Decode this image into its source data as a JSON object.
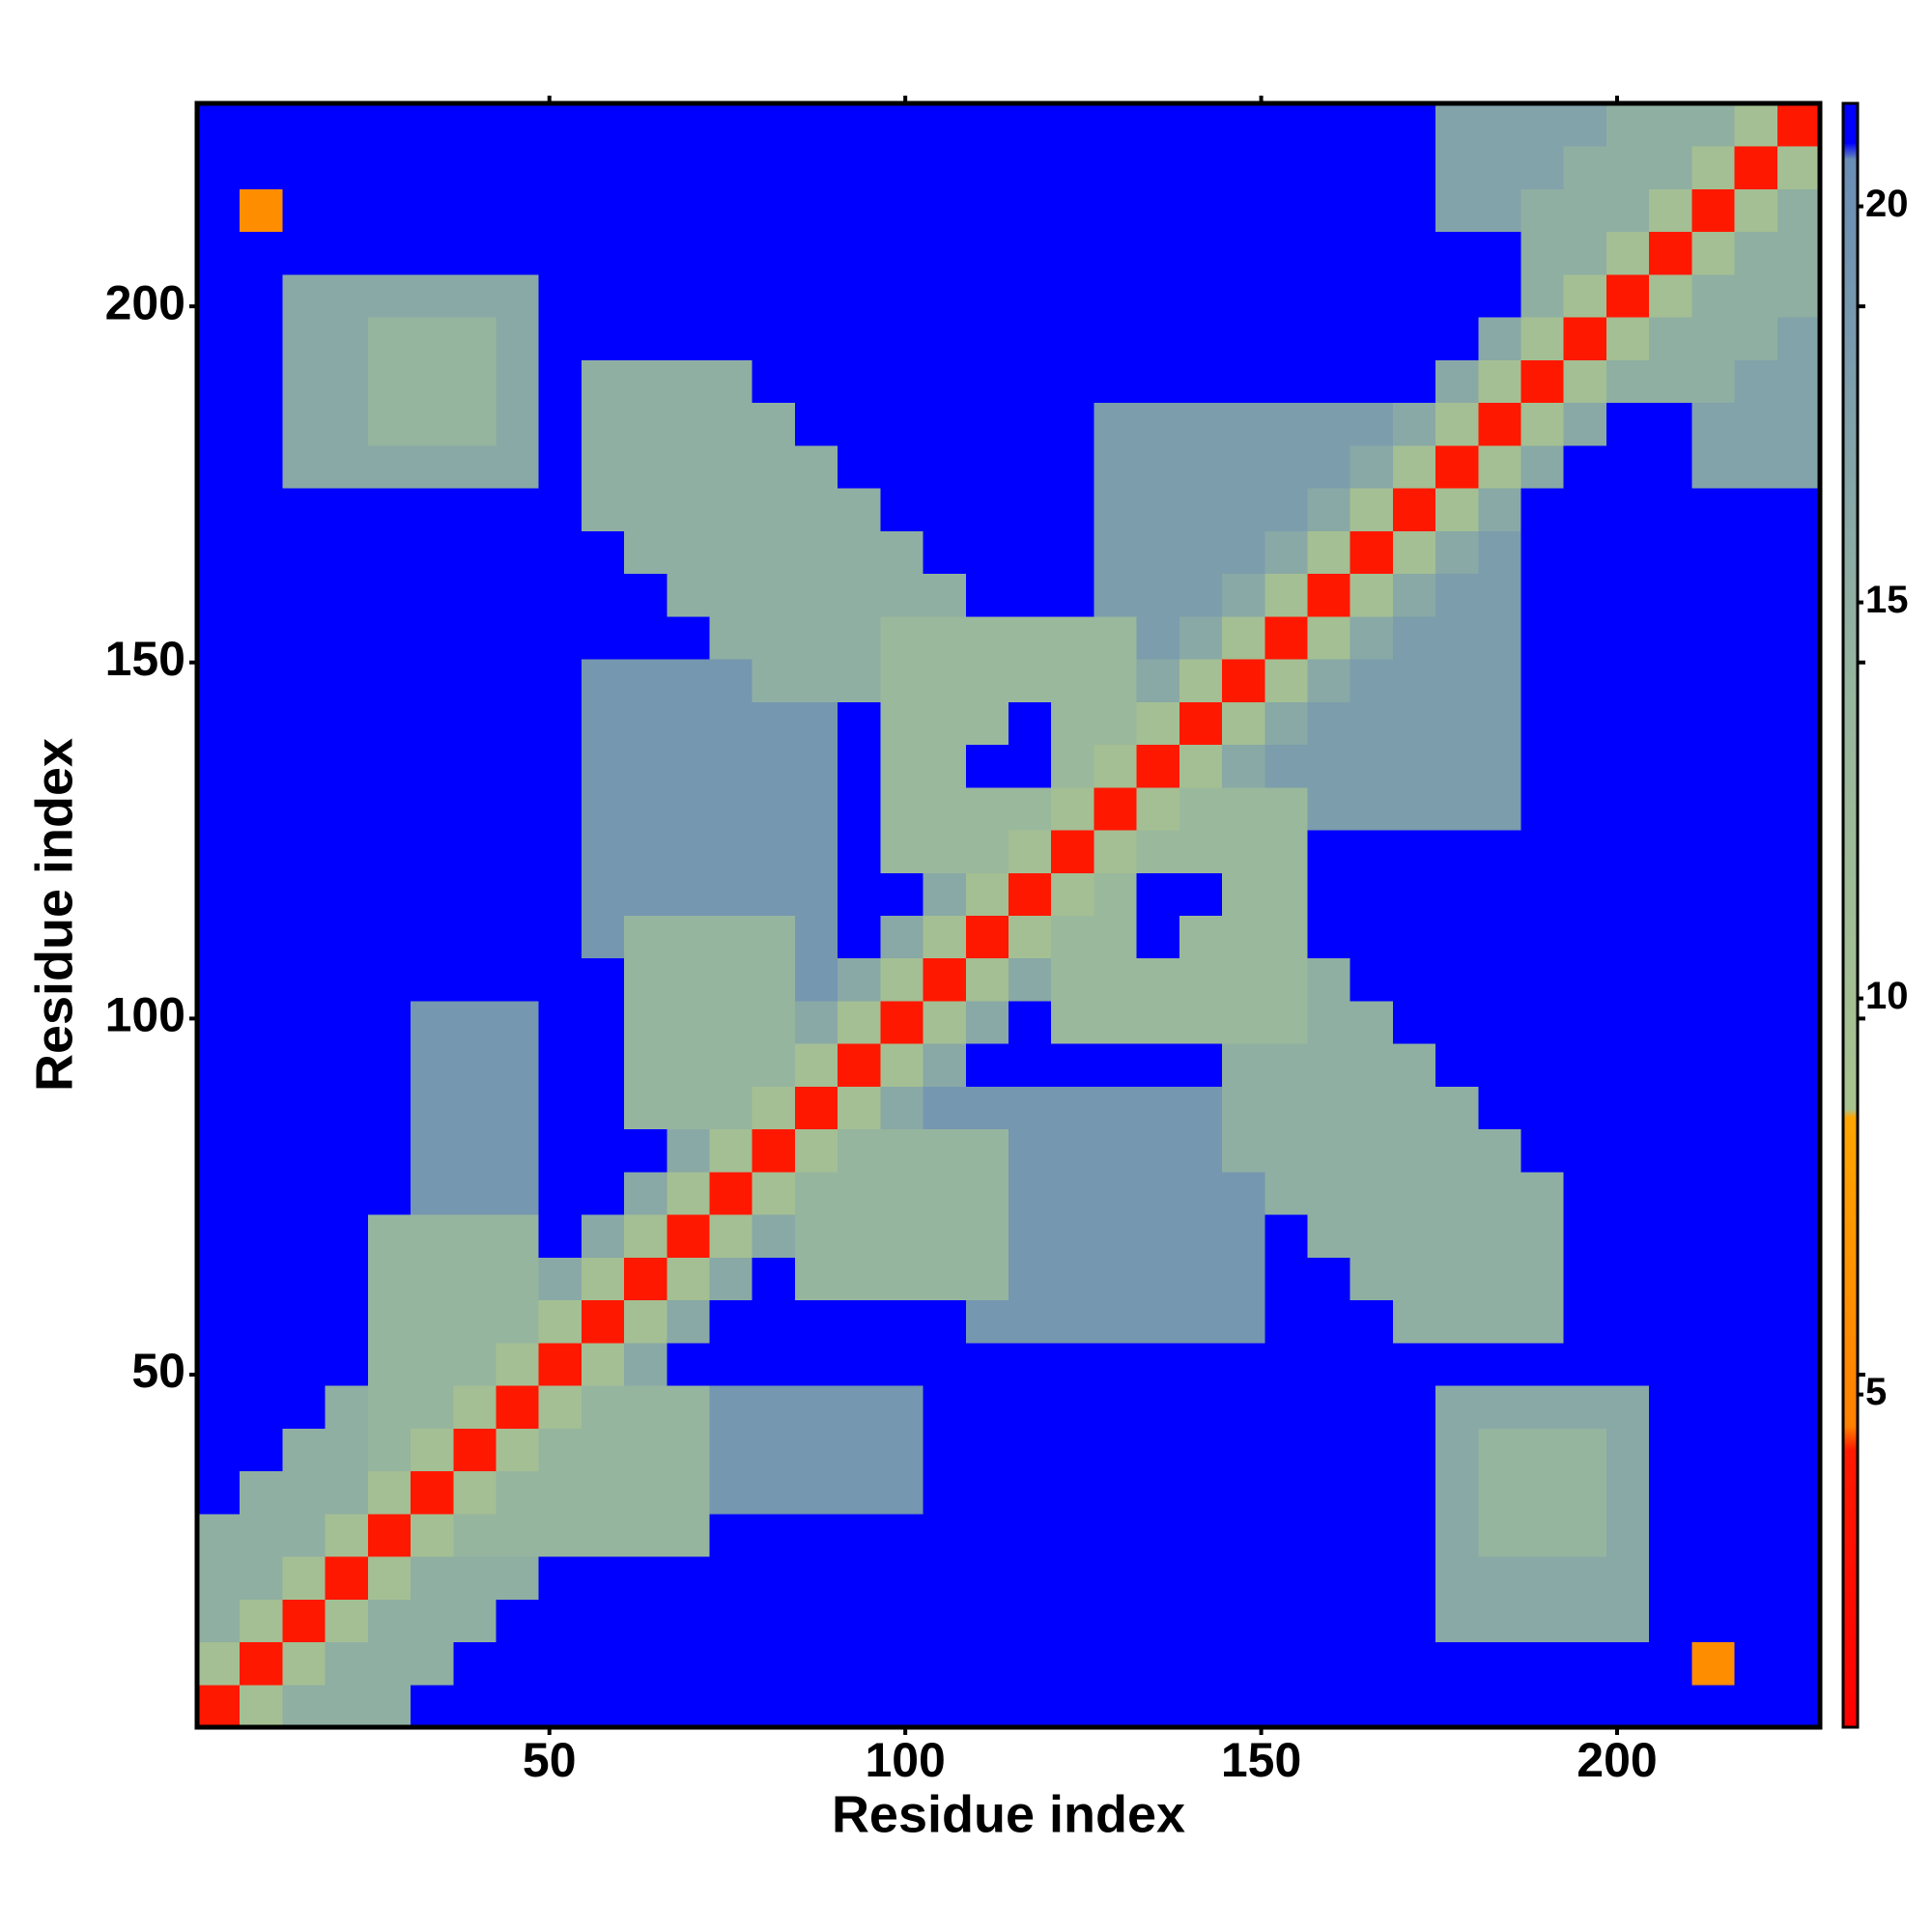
{
  "chart_data": {
    "type": "heatmap",
    "xlabel": "Residue index",
    "ylabel": "Residue index",
    "xlim": [
      0.5,
      228.5
    ],
    "ylim": [
      0.5,
      228.5
    ],
    "xticks": [
      50,
      100,
      150,
      200
    ],
    "yticks": [
      50,
      100,
      150,
      200
    ],
    "zlim": [
      0.8,
      21.3
    ],
    "zticks": [
      5,
      10,
      15,
      20
    ],
    "colorscale": [
      [
        0.8,
        "#ff0000"
      ],
      [
        4.3,
        "#ff1a00"
      ],
      [
        4.6,
        "#ff8000"
      ],
      [
        8.5,
        "#ffa500"
      ],
      [
        8.6,
        "#a9c38f"
      ],
      [
        14,
        "#96b59f"
      ],
      [
        20.6,
        "#6a8db5"
      ],
      [
        20.8,
        "#0000ff"
      ],
      [
        21.3,
        "#0000ff"
      ]
    ],
    "z": [
      [
        4,
        10,
        15,
        15,
        15,
        22,
        22,
        22,
        22,
        22,
        22,
        22,
        22,
        22,
        22,
        22,
        22,
        22,
        22,
        22,
        22,
        22,
        22,
        22,
        22,
        22,
        22,
        22,
        22,
        22,
        22,
        22,
        22,
        22,
        22,
        22,
        22,
        22
      ],
      [
        10,
        4,
        10,
        15,
        15,
        15,
        22,
        22,
        22,
        22,
        22,
        22,
        22,
        22,
        22,
        22,
        22,
        22,
        22,
        22,
        22,
        22,
        22,
        22,
        22,
        22,
        22,
        22,
        22,
        22,
        22,
        22,
        22,
        22,
        22,
        6,
        22,
        22
      ],
      [
        15,
        10,
        4,
        10,
        15,
        15,
        15,
        22,
        22,
        22,
        22,
        22,
        22,
        22,
        22,
        22,
        22,
        22,
        22,
        22,
        22,
        22,
        22,
        22,
        22,
        22,
        22,
        22,
        22,
        16,
        16,
        16,
        16,
        16,
        22,
        22,
        22,
        22
      ],
      [
        15,
        15,
        10,
        4,
        10,
        15,
        15,
        15,
        22,
        22,
        22,
        22,
        22,
        22,
        22,
        22,
        22,
        22,
        22,
        22,
        22,
        22,
        22,
        22,
        22,
        22,
        22,
        22,
        22,
        16,
        16,
        16,
        16,
        16,
        22,
        22,
        22,
        22
      ],
      [
        15,
        15,
        15,
        10,
        4,
        10,
        14,
        14,
        14,
        14,
        14,
        14,
        22,
        22,
        22,
        22,
        22,
        22,
        22,
        22,
        22,
        22,
        22,
        22,
        22,
        22,
        22,
        22,
        22,
        16,
        14,
        14,
        14,
        16,
        22,
        22,
        22,
        22
      ],
      [
        22,
        15,
        15,
        15,
        10,
        4,
        10,
        14,
        14,
        14,
        14,
        14,
        19,
        19,
        19,
        19,
        19,
        22,
        22,
        22,
        22,
        22,
        22,
        22,
        22,
        22,
        22,
        22,
        22,
        16,
        14,
        14,
        14,
        16,
        22,
        22,
        22,
        22
      ],
      [
        22,
        22,
        15,
        15,
        14,
        10,
        4,
        10,
        14,
        14,
        14,
        14,
        19,
        19,
        19,
        19,
        19,
        22,
        22,
        22,
        22,
        22,
        22,
        22,
        22,
        22,
        22,
        22,
        22,
        16,
        14,
        14,
        14,
        16,
        22,
        22,
        22,
        22
      ],
      [
        22,
        22,
        22,
        15,
        14,
        14,
        10,
        4,
        10,
        14,
        14,
        14,
        19,
        19,
        19,
        19,
        19,
        22,
        22,
        22,
        22,
        22,
        22,
        22,
        22,
        22,
        22,
        22,
        22,
        16,
        16,
        16,
        16,
        16,
        22,
        22,
        22,
        22
      ],
      [
        22,
        22,
        22,
        22,
        14,
        14,
        14,
        10,
        4,
        10,
        16,
        22,
        22,
        22,
        22,
        22,
        22,
        22,
        22,
        22,
        22,
        22,
        22,
        22,
        22,
        22,
        22,
        22,
        22,
        22,
        22,
        22,
        22,
        22,
        22,
        22,
        22,
        22
      ],
      [
        22,
        22,
        22,
        22,
        14,
        14,
        14,
        14,
        10,
        4,
        10,
        16,
        22,
        22,
        22,
        22,
        22,
        22,
        19,
        19,
        19,
        19,
        19,
        19,
        19,
        22,
        22,
        22,
        15,
        15,
        15,
        15,
        22,
        22,
        22,
        22,
        22,
        22
      ],
      [
        22,
        22,
        22,
        22,
        14,
        14,
        14,
        14,
        16,
        10,
        4,
        10,
        16,
        22,
        14,
        14,
        14,
        14,
        14,
        19,
        19,
        19,
        19,
        19,
        19,
        22,
        22,
        15,
        15,
        15,
        15,
        15,
        22,
        22,
        22,
        22,
        22,
        22
      ],
      [
        22,
        22,
        22,
        22,
        14,
        14,
        14,
        14,
        22,
        16,
        10,
        4,
        10,
        16,
        14,
        14,
        14,
        14,
        14,
        19,
        19,
        19,
        19,
        19,
        19,
        22,
        15,
        15,
        15,
        15,
        15,
        15,
        22,
        22,
        22,
        22,
        22,
        22
      ],
      [
        22,
        22,
        22,
        22,
        22,
        19,
        19,
        19,
        22,
        22,
        16,
        10,
        4,
        10,
        14,
        14,
        14,
        14,
        14,
        19,
        19,
        19,
        19,
        19,
        19,
        15,
        15,
        15,
        15,
        15,
        15,
        15,
        22,
        22,
        22,
        22,
        22,
        22
      ],
      [
        22,
        22,
        22,
        22,
        22,
        19,
        19,
        19,
        22,
        22,
        22,
        16,
        10,
        4,
        10,
        14,
        14,
        14,
        14,
        19,
        19,
        19,
        19,
        19,
        15,
        15,
        15,
        15,
        15,
        15,
        15,
        22,
        22,
        22,
        22,
        22,
        22,
        22
      ],
      [
        22,
        22,
        22,
        22,
        22,
        19,
        19,
        19,
        22,
        22,
        14,
        14,
        14,
        10,
        4,
        10,
        16,
        19,
        19,
        19,
        19,
        19,
        19,
        19,
        15,
        15,
        15,
        15,
        15,
        15,
        22,
        22,
        22,
        22,
        22,
        22,
        22,
        22
      ],
      [
        22,
        22,
        22,
        22,
        22,
        19,
        19,
        19,
        22,
        22,
        14,
        14,
        14,
        14,
        10,
        4,
        10,
        16,
        22,
        22,
        22,
        22,
        22,
        22,
        15,
        15,
        15,
        15,
        15,
        22,
        22,
        22,
        22,
        22,
        22,
        22,
        22,
        22
      ],
      [
        22,
        22,
        22,
        22,
        22,
        19,
        19,
        19,
        22,
        22,
        14,
        14,
        14,
        14,
        16,
        10,
        4,
        10,
        16,
        22,
        13,
        13,
        13,
        13,
        13,
        13,
        15,
        15,
        22,
        22,
        22,
        22,
        22,
        22,
        22,
        22,
        22,
        22
      ],
      [
        22,
        22,
        22,
        22,
        22,
        22,
        22,
        22,
        22,
        22,
        14,
        14,
        14,
        14,
        19,
        16,
        10,
        4,
        10,
        16,
        13,
        13,
        13,
        13,
        13,
        13,
        15,
        22,
        22,
        22,
        22,
        22,
        22,
        22,
        22,
        22,
        22,
        22
      ],
      [
        22,
        22,
        22,
        22,
        22,
        22,
        22,
        22,
        22,
        19,
        14,
        14,
        14,
        14,
        19,
        22,
        16,
        10,
        4,
        10,
        13,
        13,
        22,
        13,
        13,
        13,
        22,
        22,
        22,
        22,
        22,
        22,
        22,
        22,
        22,
        22,
        22,
        22
      ],
      [
        22,
        22,
        22,
        22,
        22,
        22,
        22,
        22,
        22,
        19,
        19,
        19,
        19,
        19,
        19,
        22,
        22,
        16,
        10,
        4,
        10,
        13,
        22,
        22,
        13,
        13,
        22,
        22,
        22,
        22,
        22,
        22,
        22,
        22,
        22,
        22,
        22,
        22
      ],
      [
        22,
        22,
        22,
        22,
        22,
        22,
        22,
        22,
        22,
        19,
        19,
        19,
        19,
        19,
        19,
        22,
        13,
        13,
        13,
        10,
        4,
        10,
        13,
        13,
        13,
        13,
        22,
        22,
        22,
        22,
        22,
        22,
        22,
        22,
        22,
        22,
        22,
        22
      ],
      [
        22,
        22,
        22,
        22,
        22,
        22,
        22,
        22,
        22,
        19,
        19,
        19,
        19,
        19,
        19,
        22,
        13,
        13,
        13,
        13,
        10,
        4,
        10,
        13,
        13,
        13,
        18,
        18,
        18,
        18,
        18,
        22,
        22,
        22,
        22,
        22,
        22,
        22
      ],
      [
        22,
        22,
        22,
        22,
        22,
        22,
        22,
        22,
        22,
        19,
        19,
        19,
        19,
        19,
        19,
        22,
        13,
        13,
        22,
        22,
        13,
        10,
        4,
        10,
        16,
        18,
        18,
        18,
        18,
        18,
        18,
        22,
        22,
        22,
        22,
        22,
        22,
        22
      ],
      [
        22,
        22,
        22,
        22,
        22,
        22,
        22,
        22,
        22,
        19,
        19,
        19,
        19,
        19,
        19,
        22,
        13,
        13,
        13,
        22,
        13,
        13,
        10,
        4,
        10,
        16,
        18,
        18,
        18,
        18,
        18,
        22,
        22,
        22,
        22,
        22,
        22,
        22
      ],
      [
        22,
        22,
        22,
        22,
        22,
        22,
        22,
        22,
        22,
        19,
        19,
        19,
        19,
        15,
        15,
        15,
        13,
        13,
        13,
        13,
        13,
        13,
        16,
        10,
        4,
        10,
        16,
        18,
        18,
        18,
        18,
        22,
        22,
        22,
        22,
        22,
        22,
        22
      ],
      [
        22,
        22,
        22,
        22,
        22,
        22,
        22,
        22,
        22,
        22,
        22,
        22,
        15,
        15,
        15,
        15,
        13,
        13,
        13,
        13,
        13,
        13,
        18,
        16,
        10,
        4,
        10,
        16,
        18,
        18,
        18,
        22,
        22,
        22,
        22,
        22,
        22,
        22
      ],
      [
        22,
        22,
        22,
        22,
        22,
        22,
        22,
        22,
        22,
        22,
        22,
        15,
        15,
        15,
        15,
        15,
        15,
        15,
        22,
        22,
        22,
        18,
        18,
        18,
        16,
        10,
        4,
        10,
        16,
        18,
        18,
        22,
        22,
        22,
        22,
        22,
        22,
        22
      ],
      [
        22,
        22,
        22,
        22,
        22,
        22,
        22,
        22,
        22,
        22,
        15,
        15,
        15,
        15,
        15,
        15,
        15,
        22,
        22,
        22,
        22,
        18,
        18,
        18,
        18,
        16,
        10,
        4,
        10,
        16,
        18,
        22,
        22,
        22,
        22,
        22,
        22,
        22
      ],
      [
        22,
        22,
        22,
        22,
        22,
        22,
        22,
        22,
        22,
        15,
        15,
        15,
        15,
        15,
        15,
        15,
        22,
        22,
        22,
        22,
        22,
        18,
        18,
        18,
        18,
        18,
        16,
        10,
        4,
        10,
        16,
        22,
        22,
        22,
        22,
        22,
        22,
        22
      ],
      [
        22,
        22,
        16,
        16,
        16,
        16,
        16,
        16,
        22,
        15,
        15,
        15,
        15,
        15,
        15,
        22,
        22,
        22,
        22,
        22,
        22,
        18,
        18,
        18,
        18,
        18,
        18,
        16,
        10,
        4,
        10,
        16,
        22,
        22,
        22,
        17,
        17,
        17
      ],
      [
        22,
        22,
        16,
        16,
        14,
        14,
        14,
        16,
        22,
        15,
        15,
        15,
        15,
        15,
        22,
        22,
        22,
        22,
        22,
        22,
        22,
        18,
        18,
        18,
        18,
        18,
        18,
        18,
        16,
        10,
        4,
        10,
        16,
        22,
        22,
        17,
        17,
        17
      ],
      [
        22,
        22,
        16,
        16,
        14,
        14,
        14,
        16,
        22,
        15,
        15,
        15,
        15,
        22,
        22,
        22,
        22,
        22,
        22,
        22,
        22,
        22,
        22,
        22,
        22,
        22,
        22,
        22,
        22,
        16,
        10,
        4,
        10,
        15,
        15,
        15,
        17,
        17
      ],
      [
        22,
        22,
        16,
        16,
        14,
        14,
        14,
        16,
        22,
        22,
        22,
        22,
        22,
        22,
        22,
        22,
        22,
        22,
        22,
        22,
        22,
        22,
        22,
        22,
        22,
        22,
        22,
        22,
        22,
        22,
        16,
        10,
        4,
        10,
        15,
        15,
        15,
        17
      ],
      [
        22,
        22,
        16,
        16,
        16,
        16,
        16,
        16,
        22,
        22,
        22,
        22,
        22,
        22,
        22,
        22,
        22,
        22,
        22,
        22,
        22,
        22,
        22,
        22,
        22,
        22,
        22,
        22,
        22,
        22,
        22,
        15,
        10,
        4,
        10,
        15,
        15,
        15
      ],
      [
        22,
        22,
        22,
        22,
        22,
        22,
        22,
        22,
        22,
        22,
        22,
        22,
        22,
        22,
        22,
        22,
        22,
        22,
        22,
        22,
        22,
        22,
        22,
        22,
        22,
        22,
        22,
        22,
        22,
        22,
        22,
        15,
        15,
        10,
        4,
        10,
        15,
        15
      ],
      [
        22,
        6,
        22,
        22,
        22,
        22,
        22,
        22,
        22,
        22,
        22,
        22,
        22,
        22,
        22,
        22,
        22,
        22,
        22,
        22,
        22,
        22,
        22,
        22,
        22,
        22,
        22,
        22,
        22,
        17,
        17,
        15,
        15,
        15,
        10,
        4,
        10,
        15
      ],
      [
        22,
        22,
        22,
        22,
        22,
        22,
        22,
        22,
        22,
        22,
        22,
        22,
        22,
        22,
        22,
        22,
        22,
        22,
        22,
        22,
        22,
        22,
        22,
        22,
        22,
        22,
        22,
        22,
        22,
        17,
        17,
        17,
        15,
        15,
        15,
        10,
        4,
        10
      ],
      [
        22,
        22,
        22,
        22,
        22,
        22,
        22,
        22,
        22,
        22,
        22,
        22,
        22,
        22,
        22,
        22,
        22,
        22,
        22,
        22,
        22,
        22,
        22,
        22,
        22,
        22,
        22,
        22,
        22,
        17,
        17,
        17,
        17,
        15,
        15,
        15,
        10,
        4
      ]
    ]
  }
}
